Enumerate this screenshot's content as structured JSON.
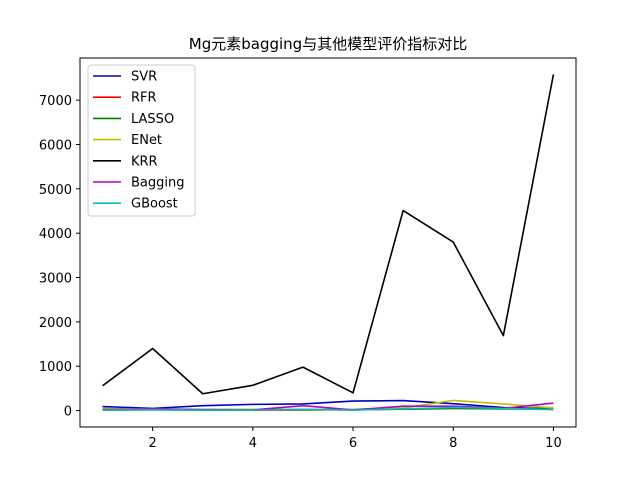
{
  "chart_data": {
    "type": "line",
    "title": "Mg元素bagging与其他模型评价指标对比",
    "xlabel": "",
    "ylabel": "",
    "xlim": [
      0.55,
      10.45
    ],
    "ylim": [
      -370,
      7950
    ],
    "xticks": [
      2,
      4,
      6,
      8,
      10
    ],
    "yticks": [
      0,
      1000,
      2000,
      3000,
      4000,
      5000,
      6000,
      7000
    ],
    "grid": false,
    "legend_position": "top-left",
    "x": [
      1,
      2,
      3,
      4,
      5,
      6,
      7,
      8,
      9,
      10
    ],
    "series": [
      {
        "name": "SVR",
        "color": "#0000bf",
        "values": [
          90,
          50,
          110,
          140,
          150,
          215,
          225,
          155,
          70,
          40
        ]
      },
      {
        "name": "RFR",
        "color": "#ff0000",
        "values": [
          30,
          20,
          15,
          10,
          15,
          20,
          30,
          60,
          40,
          30
        ]
      },
      {
        "name": "LASSO",
        "color": "#008000",
        "values": [
          40,
          30,
          25,
          20,
          20,
          25,
          30,
          45,
          40,
          35
        ]
      },
      {
        "name": "ENet",
        "color": "#bfbf00",
        "values": [
          45,
          35,
          30,
          25,
          30,
          30,
          60,
          230,
          150,
          60
        ]
      },
      {
        "name": "KRR",
        "color": "#000000",
        "values": [
          560,
          1400,
          380,
          570,
          980,
          400,
          4510,
          3800,
          1690,
          7580
        ]
      },
      {
        "name": "Bagging",
        "color": "#bf00bf",
        "values": [
          20,
          40,
          20,
          15,
          110,
          15,
          100,
          100,
          50,
          170
        ]
      },
      {
        "name": "GBoost",
        "color": "#00bfbf",
        "values": [
          10,
          15,
          10,
          10,
          30,
          10,
          40,
          70,
          50,
          20
        ]
      }
    ]
  }
}
